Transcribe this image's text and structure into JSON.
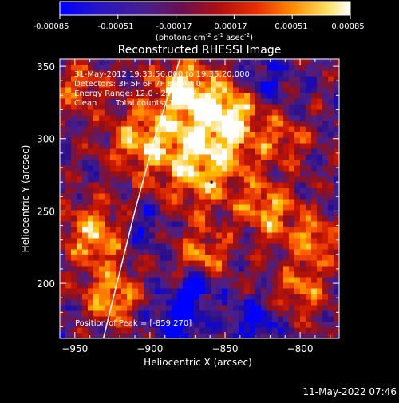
{
  "colorbar": {
    "tick_labels": [
      "-0.00085",
      "-0.00051",
      "-0.00017",
      "0.00017",
      "0.00051",
      "0.00085"
    ],
    "units_prefix": "(photons cm",
    "units_sup1": "-2",
    "units_mid": " s",
    "units_sup2": "-1",
    "units_mid2": " asec",
    "units_sup3": "-2",
    "units_suffix": ")"
  },
  "title": "Reconstructed RHESSI Image",
  "annotations": {
    "line1": "31-May-2012 19:33:56.000 to 19:35:20.000",
    "line2": "Detectors: 3F 5F 6F 7F 8F, Att 0",
    "line3": "Energy Range: 12.0 - 25.0 keV",
    "line4_method": "Clean",
    "line4_counts": "Total counts: 1.83E+03",
    "peak": "Position of Peak = [-859,270]"
  },
  "footer_timestamp": "11-May-2022 07:46",
  "chart_data": {
    "type": "heatmap",
    "title": "Reconstructed RHESSI Image",
    "xlabel": "Heliocentric X (arcsec)",
    "ylabel": "Heliocentric Y (arcsec)",
    "xlim": [
      -960,
      -774
    ],
    "ylim": [
      162,
      355
    ],
    "x_ticks": [
      -950,
      -900,
      -850,
      -800
    ],
    "x_tick_labels": [
      "−950",
      "−900",
      "−850",
      "−800"
    ],
    "y_ticks": [
      200,
      250,
      300,
      350
    ],
    "y_tick_labels": [
      "200",
      "250",
      "300",
      "350"
    ],
    "colorbar_range": [
      -0.00085,
      0.00085
    ],
    "colormap": [
      "#0000ff",
      "#2a0f8a",
      "#4a1f8a",
      "#8a1020",
      "#c81400",
      "#ff5a00",
      "#ffc200",
      "#ffffff"
    ],
    "peak_position": [
      -859,
      270
    ],
    "limb_curve": [
      [
        -931,
        162
      ],
      [
        -922,
        200
      ],
      [
        -910,
        250
      ],
      [
        -897,
        300
      ],
      [
        -880,
        355
      ]
    ],
    "features": [
      {
        "x": -867,
        "y": 290,
        "sigma": 26,
        "amp": 1.0
      },
      {
        "x": -845,
        "y": 320,
        "sigma": 14,
        "amp": 0.8
      },
      {
        "x": -878,
        "y": 335,
        "sigma": 14,
        "amp": 0.9
      },
      {
        "x": -936,
        "y": 233,
        "sigma": 15,
        "amp": 0.9
      },
      {
        "x": -925,
        "y": 190,
        "sigma": 13,
        "amp": 0.8
      },
      {
        "x": -947,
        "y": 335,
        "sigma": 12,
        "amp": 0.6
      },
      {
        "x": -910,
        "y": 300,
        "sigma": 14,
        "amp": 0.6
      },
      {
        "x": -820,
        "y": 250,
        "sigma": 13,
        "amp": 0.75
      },
      {
        "x": -790,
        "y": 230,
        "sigma": 12,
        "amp": 0.7
      },
      {
        "x": -800,
        "y": 195,
        "sigma": 13,
        "amp": 0.65
      },
      {
        "x": -865,
        "y": 220,
        "sigma": 12,
        "amp": 0.65
      },
      {
        "x": -810,
        "y": 300,
        "sigma": 11,
        "amp": 0.5
      },
      {
        "x": -880,
        "y": 175,
        "sigma": 12,
        "amp": -0.7
      },
      {
        "x": -870,
        "y": 198,
        "sigma": 7,
        "amp": -0.9
      },
      {
        "x": -830,
        "y": 175,
        "sigma": 11,
        "amp": -0.55
      },
      {
        "x": -905,
        "y": 240,
        "sigma": 12,
        "amp": -0.45
      },
      {
        "x": -825,
        "y": 340,
        "sigma": 12,
        "amp": -0.5
      }
    ]
  }
}
